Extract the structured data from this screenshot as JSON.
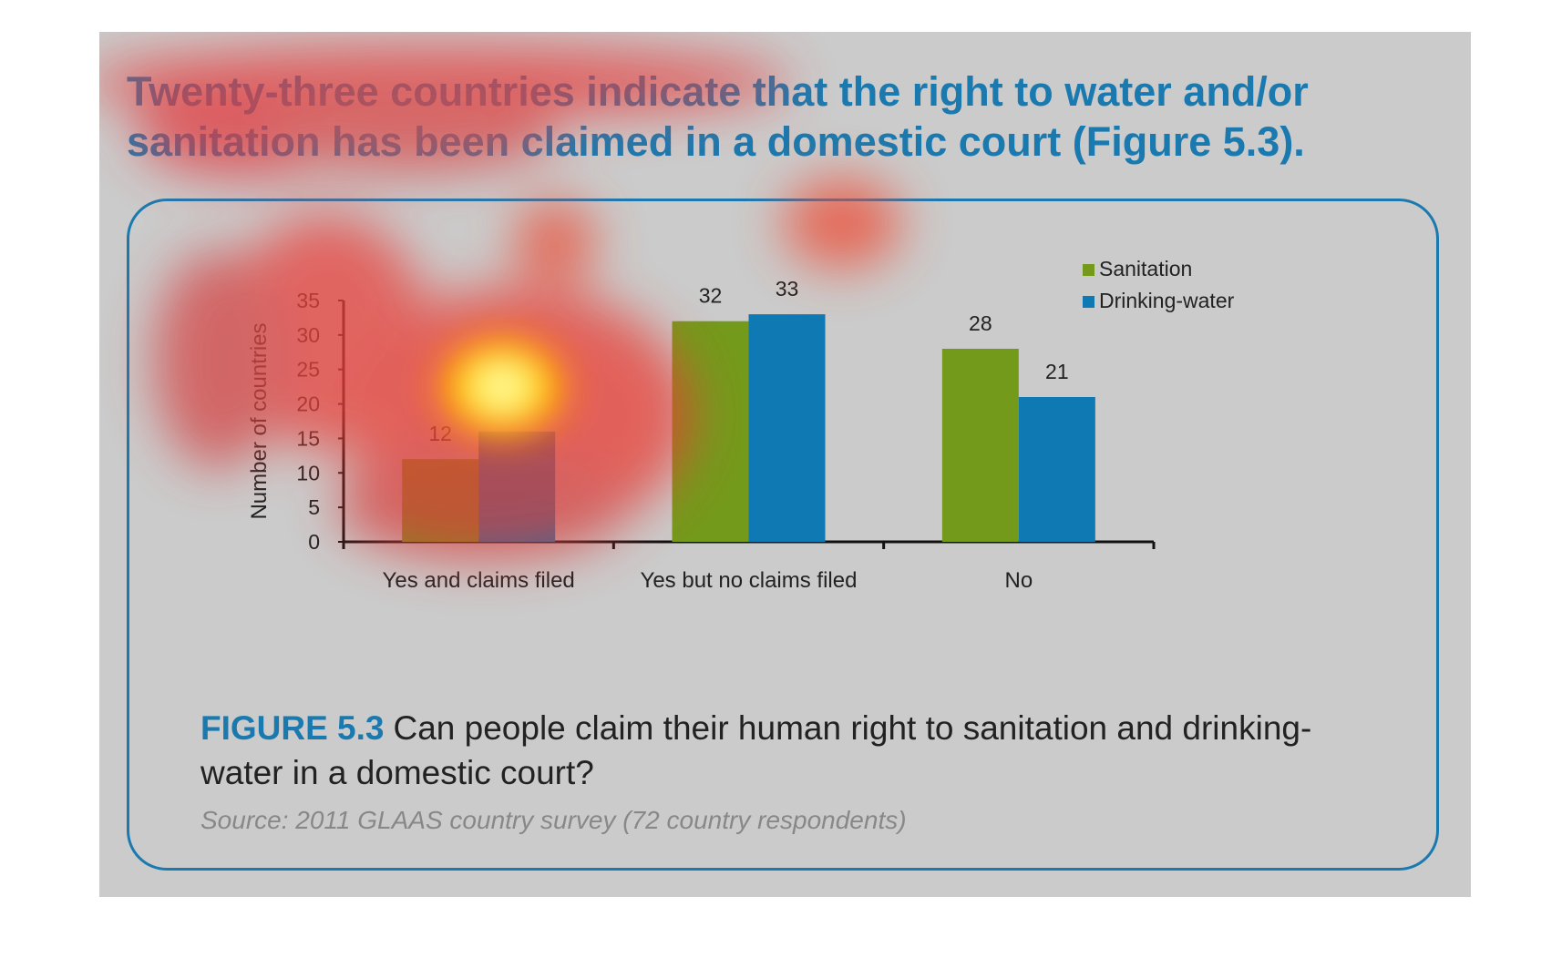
{
  "heading": "Twenty-three countries indicate that the right to water and/or sanitation has been claimed in a domestic court (Figure 5.3).",
  "caption": {
    "label": "FIGURE 5.3",
    "text": "Can people claim their human right to sanitation and drinking-water in a domestic court?"
  },
  "source": "Source: 2011 GLAAS country survey (72 country respondents)",
  "colors": {
    "accent": "#1a7ab0",
    "sanitation": "#749a1c",
    "drinking_water": "#0f79b3",
    "background": "#cbcbcb"
  },
  "chart_data": {
    "type": "bar",
    "categories": [
      "Yes and claims filed",
      "Yes but no claims filed",
      "No"
    ],
    "series": [
      {
        "name": "Sanitation",
        "values": [
          12,
          32,
          28
        ],
        "labels": [
          "12",
          "32",
          "28"
        ]
      },
      {
        "name": "Drinking-water",
        "values": [
          16,
          33,
          21
        ],
        "labels": [
          "",
          "33",
          "21"
        ]
      }
    ],
    "ylabel": "Number of countries",
    "xlabel": "",
    "ylim": [
      0,
      35
    ],
    "yticks": [
      0,
      5,
      10,
      15,
      20,
      25,
      30,
      35
    ],
    "grid": false,
    "legend": "top-right"
  }
}
